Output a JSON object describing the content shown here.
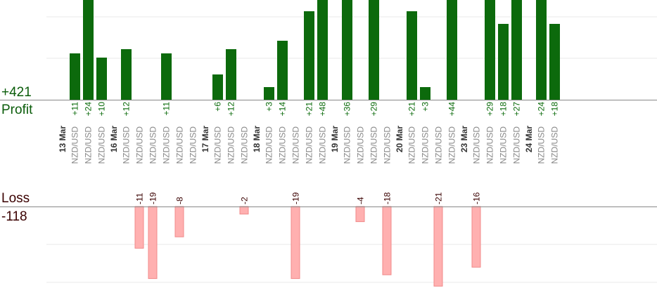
{
  "chart_data": {
    "type": "bar",
    "profit_total": "+421",
    "profit_label": "Profit",
    "loss_label": "Loss",
    "loss_total": "-118",
    "colors": {
      "profit": "#0c6a0c",
      "loss": "#ffb0b0",
      "loss_border": "#f08a8a",
      "profit_text": "#0a6a0a",
      "loss_text": "#3a0000"
    },
    "days": [
      {
        "date": "13 Mar",
        "trades": [
          {
            "pair": "NZD/USD",
            "value": 11
          },
          {
            "pair": "NZD/USD",
            "value": 24
          },
          {
            "pair": "NZD/USD",
            "value": 10
          }
        ]
      },
      {
        "date": "16 Mar",
        "trades": [
          {
            "pair": "NZD/USD",
            "value": 12
          },
          {
            "pair": "NZD/USD",
            "value": -11
          },
          {
            "pair": "NZD/USD",
            "value": -19
          },
          {
            "pair": "NZD/USD",
            "value": 11
          },
          {
            "pair": "NZD/USD",
            "value": -8
          },
          {
            "pair": "NZD/USD",
            "value": null
          }
        ]
      },
      {
        "date": "17 Mar",
        "trades": [
          {
            "pair": "NZD/USD",
            "value": 6
          },
          {
            "pair": "NZD/USD",
            "value": 12
          },
          {
            "pair": "NZD/USD",
            "value": -2
          }
        ]
      },
      {
        "date": "18 Mar",
        "trades": [
          {
            "pair": "NZD/USD",
            "value": 3
          },
          {
            "pair": "NZD/USD",
            "value": 14
          },
          {
            "pair": "NZD/USD",
            "value": -19
          },
          {
            "pair": "NZD/USD",
            "value": 21
          },
          {
            "pair": "NZD/USD",
            "value": 48
          }
        ]
      },
      {
        "date": "19 Mar",
        "trades": [
          {
            "pair": "NZD/USD",
            "value": 36
          },
          {
            "pair": "NZD/USD",
            "value": -4
          },
          {
            "pair": "NZD/USD",
            "value": 29
          },
          {
            "pair": "NZD/USD",
            "value": -18
          }
        ]
      },
      {
        "date": "20 Mar",
        "trades": [
          {
            "pair": "NZD/USD",
            "value": 21
          },
          {
            "pair": "NZD/USD",
            "value": 3
          },
          {
            "pair": "NZD/USD",
            "value": -21
          },
          {
            "pair": "NZD/USD",
            "value": 44
          }
        ]
      },
      {
        "date": "23 Mar",
        "trades": [
          {
            "pair": "NZD/USD",
            "value": -16
          },
          {
            "pair": "NZD/USD",
            "value": 29
          },
          {
            "pair": "NZD/USD",
            "value": 18
          },
          {
            "pair": "NZD/USD",
            "value": 27
          }
        ]
      },
      {
        "date": "24 Mar",
        "trades": [
          {
            "pair": "NZD/USD",
            "value": 24
          },
          {
            "pair": "NZD/USD",
            "value": 18
          }
        ]
      }
    ]
  }
}
